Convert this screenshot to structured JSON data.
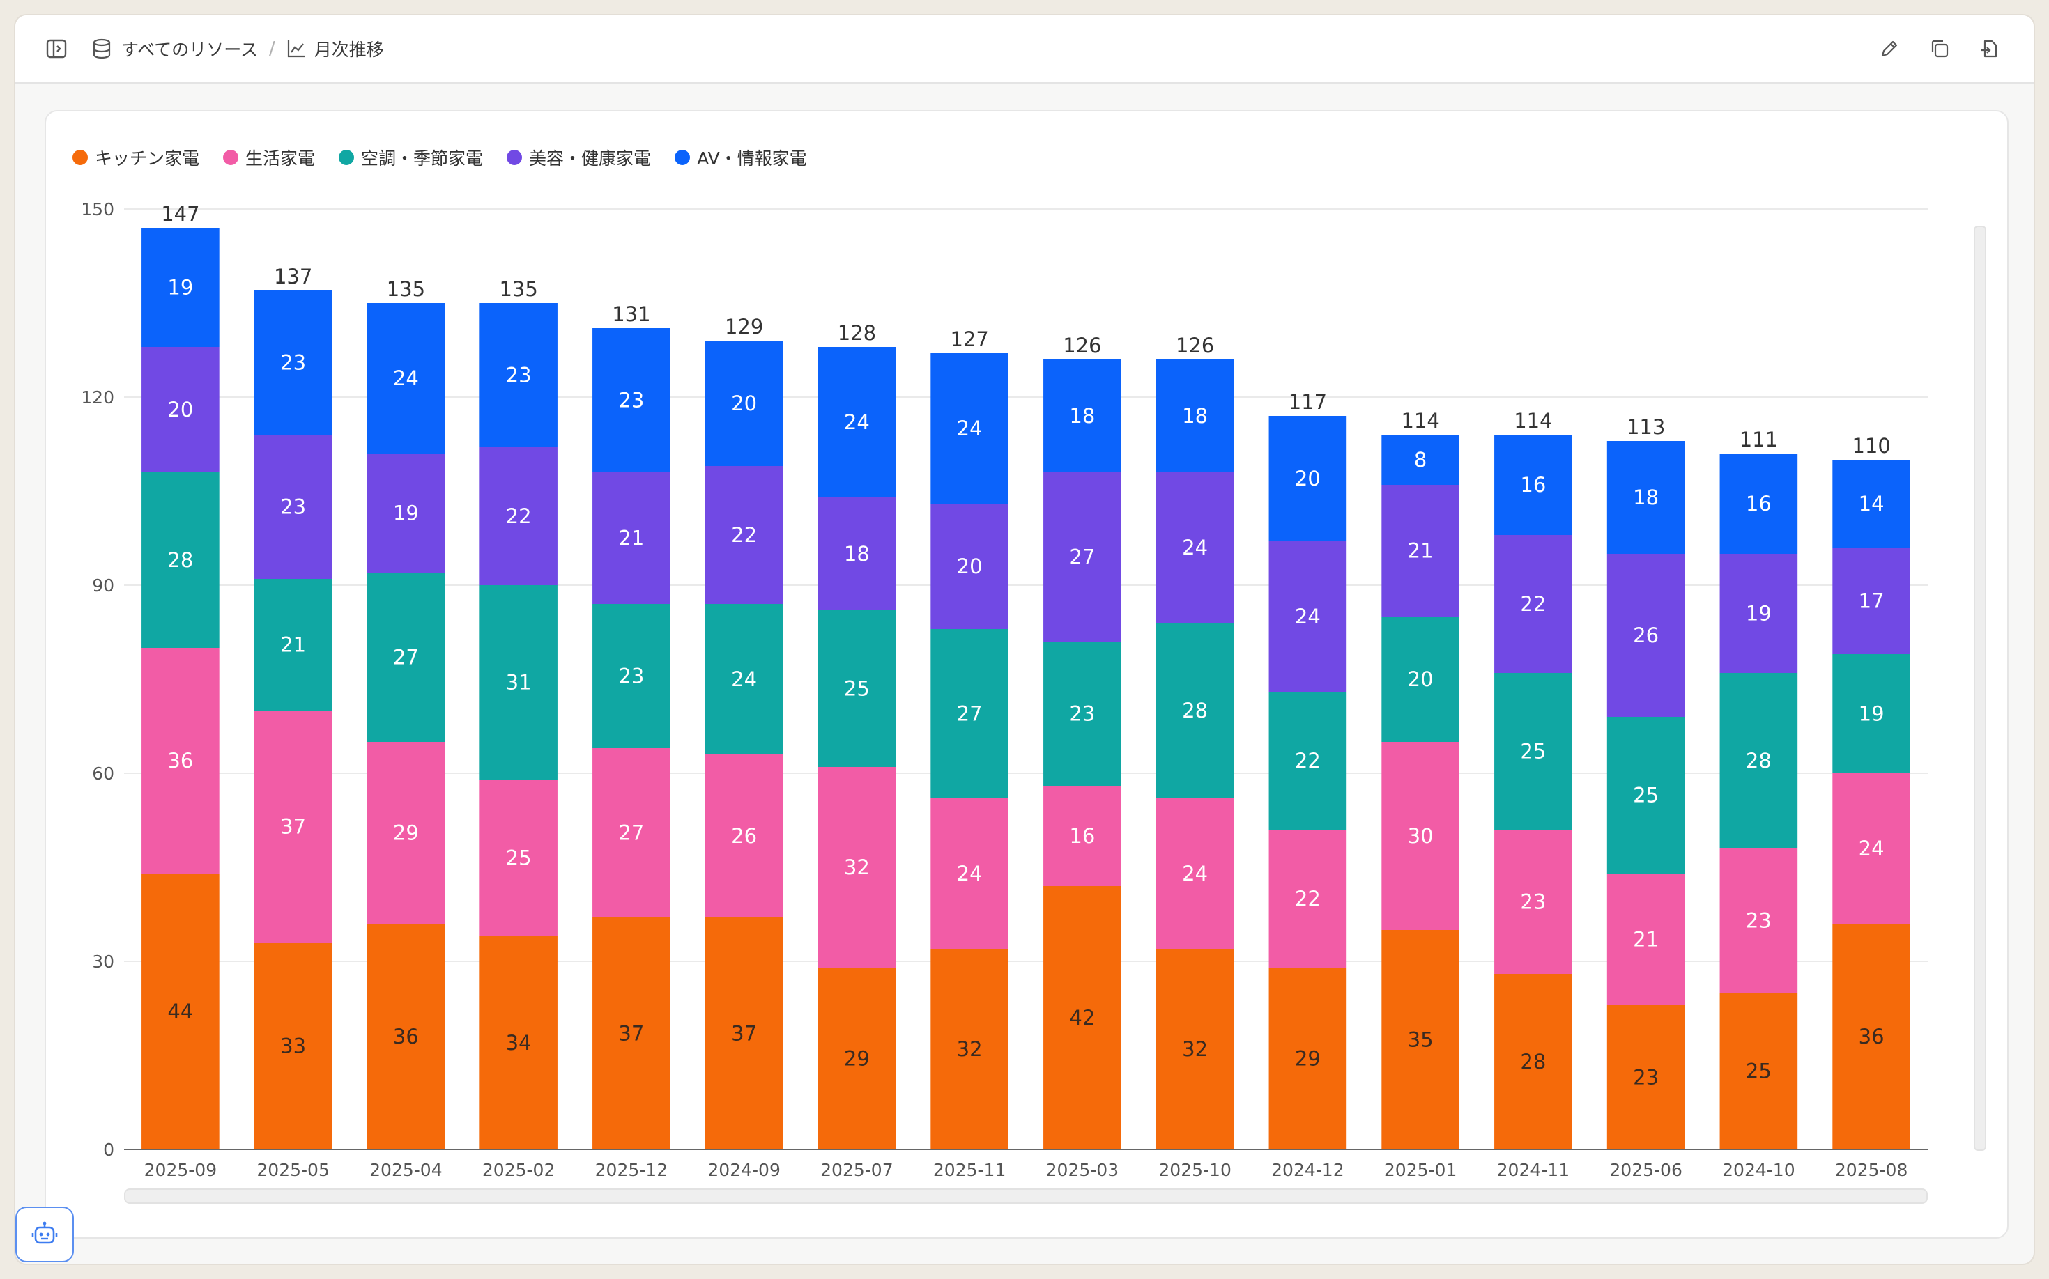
{
  "breadcrumb": {
    "root_icon": "database-icon",
    "root_label": "すべてのリソース",
    "separator": "/",
    "current_icon": "chart-icon",
    "current_label": "月次推移"
  },
  "toolbar": {
    "sidebar_toggle_icon": "sidebar-toggle-icon",
    "edit_icon": "pencil-icon",
    "duplicate_icon": "copy-icon",
    "export_icon": "export-icon"
  },
  "assistant_button": {
    "icon": "robot-icon"
  },
  "chart_data": {
    "type": "bar",
    "stacked": true,
    "categories": [
      "2025-09",
      "2025-05",
      "2025-04",
      "2025-02",
      "2025-12",
      "2024-09",
      "2025-07",
      "2025-11",
      "2025-03",
      "2025-10",
      "2024-12",
      "2025-01",
      "2024-11",
      "2025-06",
      "2024-10",
      "2025-08"
    ],
    "series": [
      {
        "name": "キッチン家電",
        "color": "#f56a0a",
        "values": [
          44,
          33,
          36,
          34,
          37,
          37,
          29,
          32,
          42,
          32,
          29,
          35,
          28,
          23,
          25,
          36
        ]
      },
      {
        "name": "生活家電",
        "color": "#f25ca6",
        "values": [
          36,
          37,
          29,
          25,
          27,
          26,
          32,
          24,
          16,
          24,
          22,
          30,
          23,
          21,
          23,
          24
        ]
      },
      {
        "name": "空調・季節家電",
        "color": "#10a7a3",
        "values": [
          28,
          21,
          27,
          31,
          23,
          24,
          25,
          27,
          23,
          28,
          22,
          20,
          25,
          25,
          28,
          19
        ]
      },
      {
        "name": "美容・健康家電",
        "color": "#7149e4",
        "values": [
          20,
          23,
          19,
          22,
          21,
          22,
          18,
          20,
          27,
          24,
          24,
          21,
          22,
          26,
          19,
          17
        ]
      },
      {
        "name": "AV・情報家電",
        "color": "#0b63fb",
        "values": [
          19,
          23,
          24,
          23,
          23,
          20,
          24,
          24,
          18,
          18,
          20,
          8,
          16,
          18,
          16,
          14
        ]
      }
    ],
    "totals": [
      147,
      137,
      135,
      135,
      131,
      129,
      128,
      127,
      126,
      126,
      117,
      114,
      114,
      113,
      111,
      110
    ],
    "yticks": [
      0,
      30,
      60,
      90,
      120,
      150
    ],
    "ylim": [
      0,
      150
    ],
    "grid": true,
    "legend_position": "top-left",
    "title": "",
    "xlabel": "",
    "ylabel": ""
  }
}
